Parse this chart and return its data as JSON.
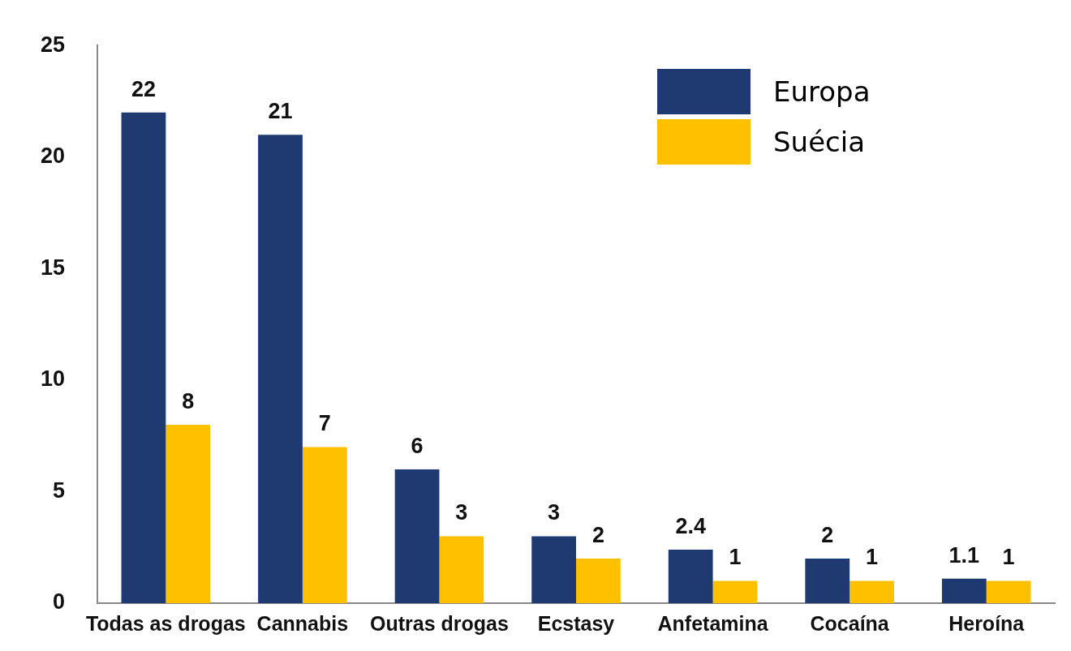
{
  "chart_data": {
    "type": "bar",
    "categories": [
      "Todas as drogas",
      "Cannabis",
      "Outras drogas",
      "Ecstasy",
      "Anfetamina",
      "Cocaína",
      "Heroína"
    ],
    "series": [
      {
        "name": "Europa",
        "color": "#1f3a70",
        "values": [
          22,
          21,
          6,
          3,
          2.4,
          2,
          1.1
        ]
      },
      {
        "name": "Suécia",
        "color": "#ffc000",
        "values": [
          8,
          7,
          3,
          2,
          1,
          1,
          1
        ]
      }
    ],
    "ylim": [
      0,
      25
    ],
    "yticks": [
      0,
      5,
      10,
      15,
      20,
      25
    ],
    "grid": false,
    "legend": "top right",
    "data_labels": true
  }
}
